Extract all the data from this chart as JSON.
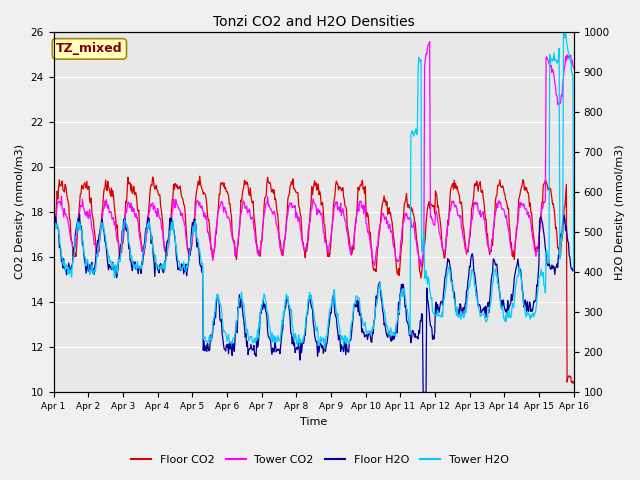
{
  "title": "Tonzi CO2 and H2O Densities",
  "xlabel": "Time",
  "ylabel_left": "CO2 Density (mmol/m3)",
  "ylabel_right": "H2O Density (mmol/m3)",
  "ylim_left": [
    10,
    26
  ],
  "ylim_right": [
    100,
    1000
  ],
  "annotation": "TZ_mixed",
  "annotation_color": "#880000",
  "annotation_bg": "#ffffc0",
  "annotation_border": "#aa8800",
  "legend_labels": [
    "Floor CO2",
    "Tower CO2",
    "Floor H2O",
    "Tower H2O"
  ],
  "line_colors": [
    "#dd0000",
    "#ff00ff",
    "#000099",
    "#00ccff"
  ],
  "bg_color": "#e8e8e8",
  "fig_bg": "#f0f0f0",
  "ylim_left_ticks": [
    10,
    12,
    14,
    16,
    18,
    20,
    22,
    24,
    26
  ],
  "ylim_right_ticks": [
    100,
    200,
    300,
    400,
    500,
    600,
    700,
    800,
    900,
    1000
  ],
  "n_points": 720
}
